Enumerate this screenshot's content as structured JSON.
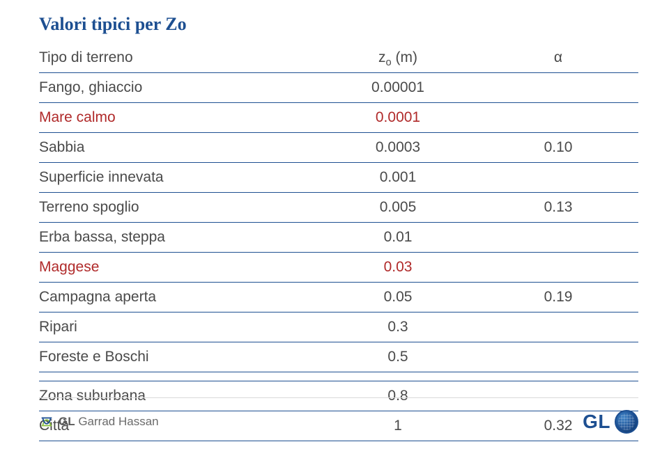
{
  "title": "Valori tipici per Zo",
  "columns": {
    "label": "Tipo di terreno",
    "z": "z",
    "z_sub": "o",
    "z_unit": " (m)",
    "alpha": "α"
  },
  "rows": [
    {
      "label": "Fango, ghiaccio",
      "z": "0.00001",
      "alpha": "",
      "red": false
    },
    {
      "label": "Mare calmo",
      "z": "0.0001",
      "alpha": "",
      "red": true
    },
    {
      "label": "Sabbia",
      "z": "0.0003",
      "alpha": "0.10",
      "red": false
    },
    {
      "label": "Superficie innevata",
      "z": "0.001",
      "alpha": "",
      "red": false
    },
    {
      "label": "Terreno spoglio",
      "z": "0.005",
      "alpha": "0.13",
      "red": false
    },
    {
      "label": "Erba bassa, steppa",
      "z": "0.01",
      "alpha": "",
      "red": false
    },
    {
      "label": "Maggese",
      "z": "0.03",
      "alpha": "",
      "red": true
    },
    {
      "label": "Campagna aperta",
      "z": "0.05",
      "alpha": "0.19",
      "red": false
    },
    {
      "label": "Ripari",
      "z": "0.3",
      "alpha": "",
      "red": false
    },
    {
      "label": "Foreste e Boschi",
      "z": "0.5",
      "alpha": "",
      "red": false
    }
  ],
  "rows2": [
    {
      "label": "Zona suburbana",
      "z": "0.8",
      "alpha": "",
      "red": false
    },
    {
      "label": "Città",
      "z": "1",
      "alpha": "0.32",
      "red": false
    }
  ],
  "footer": {
    "brand_bold": "GL",
    "brand_rest": " Garrad Hassan",
    "right": "GL"
  },
  "colors": {
    "accent": "#1d4f91",
    "red": "#b02a2a",
    "text": "#4a4a4a"
  }
}
